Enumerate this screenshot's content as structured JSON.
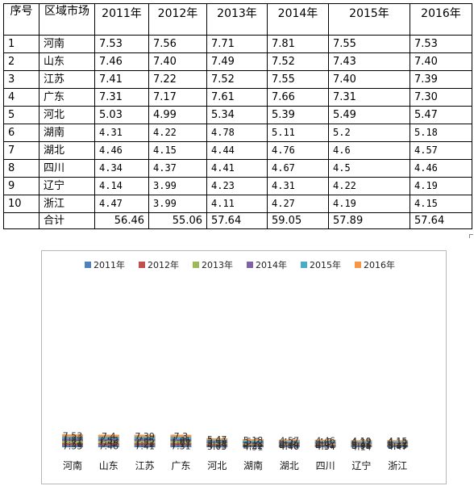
{
  "table": {
    "headers": [
      "序号",
      "区域市场",
      "2011年",
      "2012年",
      "2013年",
      "2014年",
      "2015年",
      "2016年"
    ],
    "rows": [
      [
        "1",
        "河南",
        "7.53",
        "7.56",
        "7.71",
        "7.81",
        "7.55",
        "7.53"
      ],
      [
        "2",
        "山东",
        "7.46",
        "7.40",
        "7.49",
        "7.52",
        "7.43",
        "7.40"
      ],
      [
        "3",
        "江苏",
        "7.41",
        "7.22",
        "7.52",
        "7.55",
        "7.40",
        "7.39"
      ],
      [
        "4",
        "广东",
        "7.31",
        "7.17",
        "7.61",
        "7.66",
        "7.31",
        "7.30"
      ],
      [
        "5",
        "河北",
        "5.03",
        "4.99",
        "5.34",
        "5.39",
        "5.49",
        "5.47"
      ],
      [
        "6",
        "湖南",
        "4.31",
        "4.22",
        "4.78",
        "5.11",
        "5.2",
        "5.18"
      ],
      [
        "7",
        "湖北",
        "4.46",
        "4.15",
        "4.44",
        "4.76",
        "4.6",
        "4.57"
      ],
      [
        "8",
        "四川",
        "4.34",
        "4.37",
        "4.41",
        "4.67",
        "4.5",
        "4.46"
      ],
      [
        "9",
        "辽宁",
        "4.14",
        "3.99",
        "4.23",
        "4.31",
        "4.22",
        "4.19"
      ],
      [
        "10",
        "浙江",
        "4.47",
        "3.99",
        "4.11",
        "4.27",
        "4.19",
        "4.15"
      ]
    ],
    "total_row": [
      "",
      "合计",
      "56.46",
      "55.06",
      "57.64",
      "59.05",
      "57.89",
      "57.64"
    ]
  },
  "chart_data": {
    "type": "bar",
    "stacked": true,
    "categories": [
      "河南",
      "山东",
      "江苏",
      "广东",
      "河北",
      "湖南",
      "湖北",
      "四川",
      "辽宁",
      "浙江"
    ],
    "series": [
      {
        "name": "2011年",
        "color": "#4f81bd",
        "values": [
          7.53,
          7.46,
          7.41,
          7.31,
          5.03,
          4.31,
          4.46,
          4.34,
          4.14,
          4.47
        ]
      },
      {
        "name": "2012年",
        "color": "#c0504d",
        "values": [
          7.56,
          7.4,
          7.22,
          7.17,
          4.99,
          4.22,
          4.15,
          4.37,
          3.99,
          3.99
        ]
      },
      {
        "name": "2013年",
        "color": "#9bbb59",
        "values": [
          7.71,
          7.49,
          7.52,
          7.61,
          5.34,
          4.78,
          4.44,
          4.41,
          4.23,
          4.11
        ]
      },
      {
        "name": "2014年",
        "color": "#8064a2",
        "values": [
          7.81,
          7.52,
          7.55,
          7.66,
          5.39,
          5.11,
          4.76,
          4.67,
          4.31,
          4.27
        ]
      },
      {
        "name": "2015年",
        "color": "#4bacc6",
        "values": [
          7.55,
          7.43,
          7.4,
          7.31,
          5.49,
          5.2,
          4.6,
          4.5,
          4.22,
          4.19
        ]
      },
      {
        "name": "2016年",
        "color": "#f79646",
        "values": [
          7.53,
          7.4,
          7.39,
          7.3,
          5.47,
          5.18,
          4.57,
          4.46,
          4.19,
          4.15
        ]
      }
    ],
    "data_labels": true,
    "legend_position": "top",
    "grid": false,
    "show_value_axis": false
  }
}
